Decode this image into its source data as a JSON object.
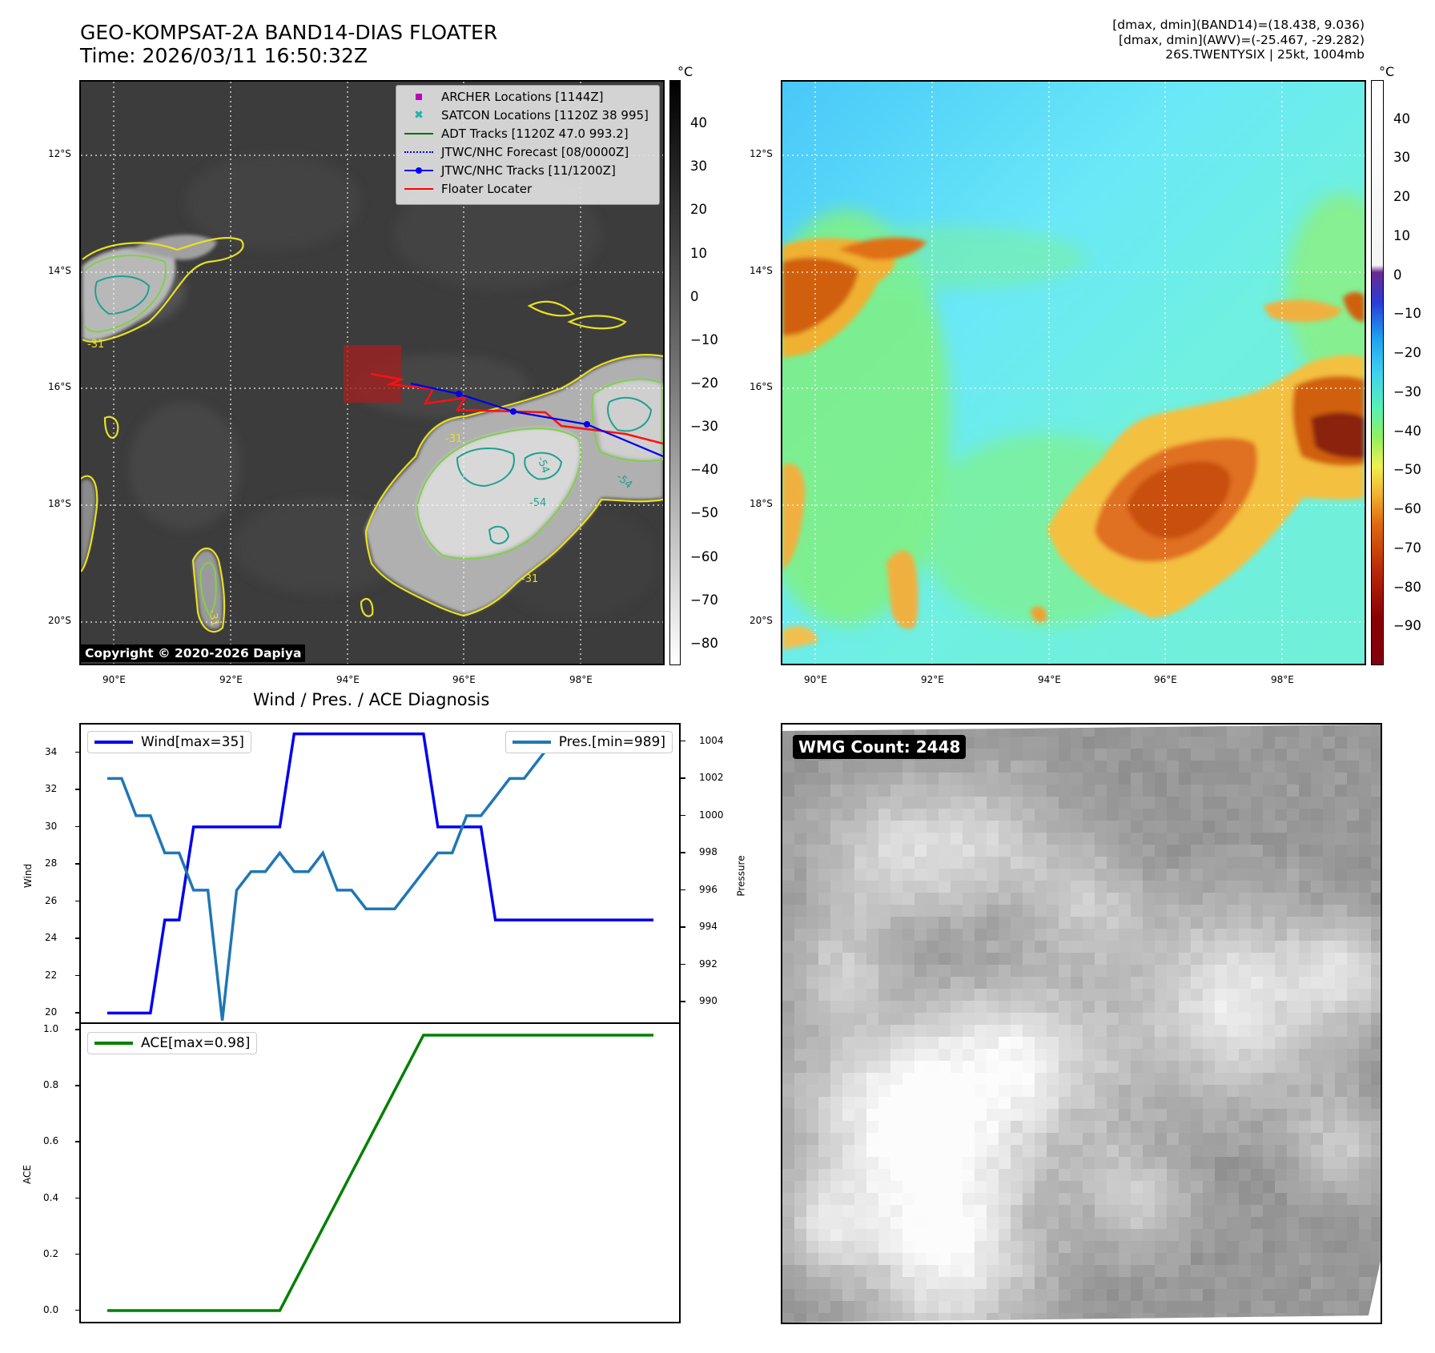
{
  "header": {
    "title_line1": "GEO-KOMPSAT-2A BAND14-DIAS FLOATER",
    "title_line2": "Time: 2026/03/11 16:50:32Z",
    "info_line1": "[dmax, dmin](BAND14)=(18.438, 9.036)",
    "info_line2": "[dmax, dmin](AWV)=(-25.467, -29.282)",
    "info_line3": "26S.TWENTYSIX | 25kt, 1004mb"
  },
  "map": {
    "lon_ticks": [
      "90°E",
      "92°E",
      "94°E",
      "96°E",
      "98°E"
    ],
    "lat_ticks": [
      "12°S",
      "14°S",
      "16°S",
      "18°S",
      "20°S"
    ],
    "contour_labels": [
      "-31",
      "-54",
      "-54",
      "-54",
      "-31",
      "-31",
      "-31"
    ],
    "copyright": "Copyright © 2020-2026 Dapiya",
    "legend": [
      {
        "label": "ARCHER Locations [1144Z]",
        "color": "#c000c0",
        "symbol": "square"
      },
      {
        "label": "SATCON Locations [1120Z 38 995]",
        "color": "#20b2aa",
        "symbol": "x"
      },
      {
        "label": "ADT Tracks [1120Z 47.0 993.2]",
        "color": "#007000",
        "symbol": "line"
      },
      {
        "label": "JTWC/NHC Forecast [08/0000Z]",
        "color": "#0000ff",
        "symbol": "dotted"
      },
      {
        "label": "JTWC/NHC Tracks [11/1200Z]",
        "color": "#0000ff",
        "symbol": "line-dot"
      },
      {
        "label": "Floater Locater",
        "color": "#ff0000",
        "symbol": "line"
      }
    ],
    "colorbar_gray": {
      "unit": "°C",
      "ticks": [
        "40",
        "30",
        "20",
        "10",
        "0",
        "−10",
        "−20",
        "−30",
        "−40",
        "−50",
        "−60",
        "−70",
        "−80"
      ]
    },
    "colorbar_color": {
      "unit": "°C",
      "ticks": [
        "40",
        "30",
        "20",
        "10",
        "0",
        "−10",
        "−20",
        "−30",
        "−40",
        "−50",
        "−60",
        "−70",
        "−80",
        "−90"
      ]
    }
  },
  "diagnosis": {
    "title": "Wind / Pres. / ACE Diagnosis",
    "wind_legend": "Wind[max=35]",
    "pres_legend": "Pres.[min=989]",
    "ace_legend": "ACE[max=0.98]",
    "wind_axis_label": "Wind",
    "pres_axis_label": "Pressure",
    "ace_axis_label": "ACE",
    "wind_ticks": [
      "20",
      "22",
      "24",
      "26",
      "28",
      "30",
      "32",
      "34"
    ],
    "pres_ticks": [
      "990",
      "992",
      "994",
      "996",
      "998",
      "1000",
      "1002",
      "1004"
    ],
    "ace_ticks": [
      "0.0",
      "0.2",
      "0.4",
      "0.6",
      "0.8",
      "1.0"
    ]
  },
  "wmg": {
    "label": "WMG Count: 2448"
  },
  "chart_data": [
    {
      "type": "line",
      "title": "Wind / Pres. / ACE Diagnosis",
      "x": [
        0,
        1,
        2,
        3,
        4,
        5,
        6,
        7,
        8,
        9,
        10,
        11,
        12,
        13,
        14,
        15,
        16,
        17,
        18,
        19,
        20,
        21,
        22,
        23,
        24,
        25,
        26,
        27,
        28,
        29,
        30,
        31,
        32,
        33,
        34,
        35,
        36,
        37,
        38
      ],
      "series": [
        {
          "name": "Wind[max=35]",
          "axis": "left",
          "color": "#0000ee",
          "values": [
            20,
            20,
            20,
            20,
            25,
            25,
            30,
            30,
            30,
            30,
            30,
            30,
            30,
            35,
            35,
            35,
            35,
            35,
            35,
            35,
            35,
            35,
            35,
            30,
            30,
            30,
            30,
            25,
            25,
            25,
            25,
            25,
            25,
            25,
            25,
            25,
            25,
            25,
            25
          ]
        },
        {
          "name": "Pres.[min=989]",
          "axis": "right",
          "color": "#1f77b4",
          "values": [
            1002,
            1002,
            1000,
            1000,
            998,
            998,
            996,
            996,
            989,
            996,
            997,
            997,
            998,
            997,
            997,
            998,
            996,
            996,
            995,
            995,
            995,
            996,
            997,
            998,
            998,
            1000,
            1000,
            1001,
            1002,
            1002,
            1003,
            1004,
            1004,
            1004,
            1004,
            1004,
            1004,
            1004,
            1004
          ]
        }
      ],
      "ylim_left": [
        19.5,
        35.5
      ],
      "ylim_right": [
        988.9,
        1004.9
      ]
    },
    {
      "type": "line",
      "series": [
        {
          "name": "ACE[max=0.98]",
          "color": "#008000",
          "values": [
            0,
            0,
            0,
            0,
            0,
            0,
            0,
            0,
            0,
            0,
            0,
            0,
            0,
            0.098,
            0.196,
            0.294,
            0.392,
            0.49,
            0.588,
            0.686,
            0.784,
            0.882,
            0.98,
            0.98,
            0.98,
            0.98,
            0.98,
            0.98,
            0.98,
            0.98,
            0.98,
            0.98,
            0.98,
            0.98,
            0.98,
            0.98,
            0.98,
            0.98,
            0.98
          ]
        }
      ],
      "ylim": [
        -0.04,
        1.02
      ]
    }
  ]
}
